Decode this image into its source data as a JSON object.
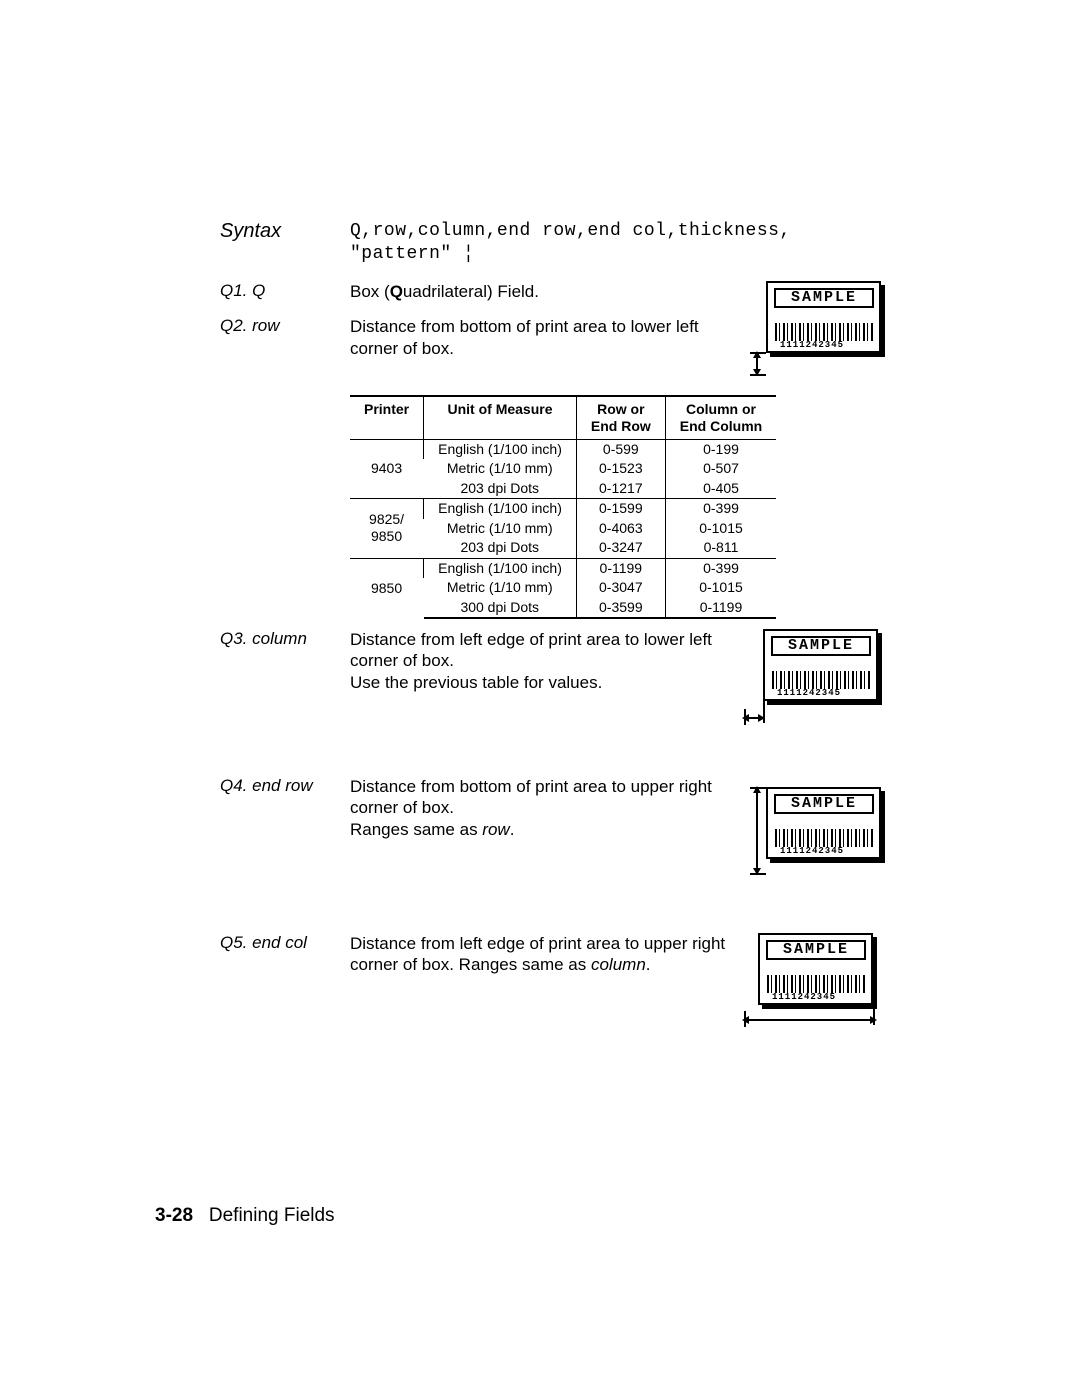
{
  "syntax": {
    "label": "Syntax",
    "line1": "Q,row,column,end row,end col,thickness,",
    "line2": "\"pattern\" ¦"
  },
  "items": {
    "q1": {
      "label": "Q1. Q",
      "text_pre": "Box (",
      "bold": "Q",
      "text_post": "uadrilateral) Field."
    },
    "q2": {
      "label": "Q2. row",
      "text": "Distance from bottom of print area to lower left corner of box."
    },
    "q3": {
      "label": "Q3. column",
      "line1": "Distance from left edge of print area to lower left corner of box.",
      "line2": "Use the previous table for values."
    },
    "q4": {
      "label": "Q4. end row",
      "line1": "Distance from bottom of print area to upper right corner of box.",
      "line2_pre": "Ranges same as ",
      "line2_ital": "row",
      "line2_post": "."
    },
    "q5": {
      "label": "Q5. end col",
      "line1": "Distance from left edge of print area to upper right corner of box.   Ranges same as ",
      "ital": "column",
      "post": "."
    }
  },
  "sample": {
    "word": "SAMPLE",
    "code": "1111242345"
  },
  "table": {
    "headers": [
      "Printer",
      "Unit of Measure",
      "Row or\nEnd Row",
      "Column or\nEnd Column"
    ],
    "groups": [
      {
        "printer": "9403",
        "rows": [
          [
            "English (1/100 inch)",
            "0-599",
            "0-199"
          ],
          [
            "Metric (1/10 mm)",
            "0-1523",
            "0-507"
          ],
          [
            "203 dpi Dots",
            "0-1217",
            "0-405"
          ]
        ]
      },
      {
        "printer": "9825/\n9850",
        "rows": [
          [
            "English (1/100 inch)",
            "0-1599",
            "0-399"
          ],
          [
            "Metric (1/10 mm)",
            "0-4063",
            "0-1015"
          ],
          [
            "203 dpi Dots",
            "0-3247",
            "0-811"
          ]
        ]
      },
      {
        "printer": "9850",
        "rows": [
          [
            "English (1/100 inch)",
            "0-1199",
            "0-399"
          ],
          [
            "Metric (1/10 mm)",
            "0-3047",
            "0-1015"
          ],
          [
            "300 dpi Dots",
            "0-3599",
            "0-1199"
          ]
        ]
      }
    ]
  },
  "footer": {
    "page": "3-28",
    "title": "Defining Fields"
  }
}
